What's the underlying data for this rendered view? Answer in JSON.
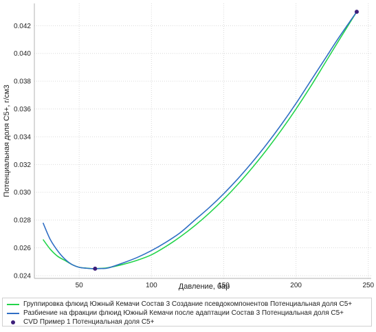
{
  "chart_data": {
    "type": "line",
    "title": "",
    "xlabel": "Давление, бар",
    "ylabel": "Потенциальная доля С5+, г/см3",
    "xlim": [
      19,
      252
    ],
    "ylim": [
      0.0238,
      0.0436
    ],
    "xticks": [
      50,
      100,
      150,
      200,
      250
    ],
    "yticks": [
      0.024,
      0.026,
      0.028,
      0.03,
      0.032,
      0.034,
      0.036,
      0.038,
      0.04,
      0.042
    ],
    "grid": true,
    "legend_position": "bottom",
    "series": [
      {
        "name": "Группировка флюид Южный Кемачи Состав 3 Создание псевдокомпонентов Потенциальная доля С5+",
        "color": "#22d44a",
        "kind": "line",
        "x": [
          25,
          30,
          35,
          40,
          45,
          50,
          55,
          60,
          65,
          70,
          80,
          90,
          100,
          110,
          120,
          130,
          140,
          150,
          160,
          170,
          180,
          190,
          200,
          210,
          220,
          230,
          242
        ],
        "y": [
          0.0266,
          0.0259,
          0.0254,
          0.0251,
          0.0248,
          0.0246,
          0.02454,
          0.0245,
          0.02452,
          0.02457,
          0.0248,
          0.0251,
          0.0255,
          0.0261,
          0.0268,
          0.0276,
          0.0285,
          0.0295,
          0.0306,
          0.0318,
          0.0331,
          0.0345,
          0.036,
          0.0376,
          0.0393,
          0.041,
          0.043
        ]
      },
      {
        "name": "Разбиение на фракции флюид Южный Кемачи после адаптации Состав 3 Потенциальная доля С5+",
        "color": "#2f6ec4",
        "kind": "line",
        "x": [
          25,
          30,
          35,
          40,
          45,
          50,
          55,
          60,
          65,
          70,
          80,
          90,
          100,
          110,
          120,
          130,
          140,
          150,
          160,
          170,
          180,
          190,
          200,
          210,
          220,
          230,
          242
        ],
        "y": [
          0.0278,
          0.0266,
          0.0258,
          0.0252,
          0.0248,
          0.0246,
          0.02453,
          0.0245,
          0.02451,
          0.02455,
          0.0249,
          0.0253,
          0.0258,
          0.0264,
          0.0271,
          0.028,
          0.0289,
          0.0299,
          0.031,
          0.0322,
          0.0335,
          0.0349,
          0.0364,
          0.038,
          0.0396,
          0.0412,
          0.043
        ]
      },
      {
        "name": "CVD Пример 1 Потенциальная доля С5+",
        "color": "#3d1f7a",
        "kind": "scatter",
        "x": [
          61,
          242
        ],
        "y": [
          0.0245,
          0.043
        ]
      }
    ]
  }
}
